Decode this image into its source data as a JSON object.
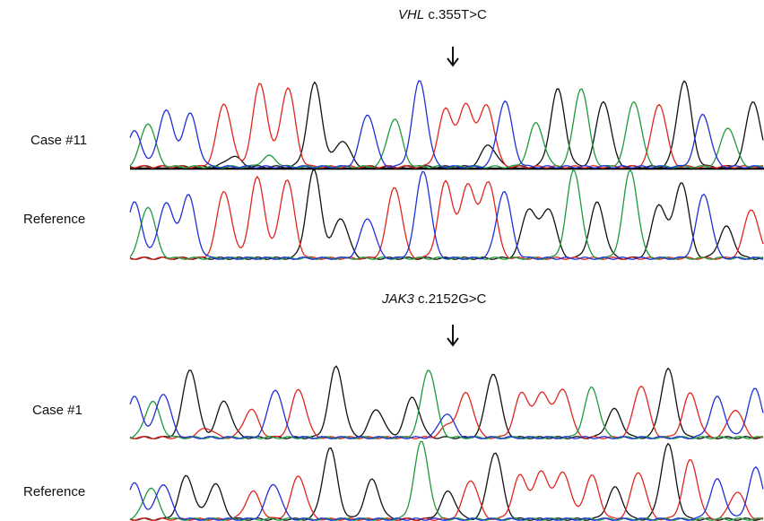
{
  "panels": [
    {
      "gene": "VHL",
      "variant": "c.355T>C",
      "case_label": "Case #11",
      "reference_label": "Reference"
    },
    {
      "gene": "JAK3",
      "variant": "c.2152G>C",
      "case_label": "Case #1",
      "reference_label": "Reference"
    }
  ]
}
